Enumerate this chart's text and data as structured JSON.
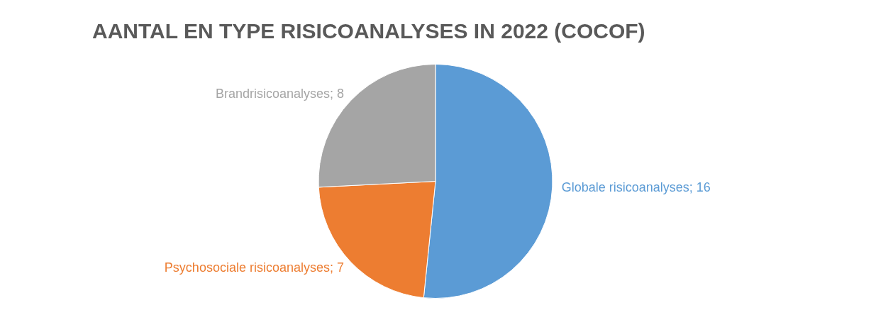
{
  "chart_data": {
    "type": "pie",
    "title": "AANTAL EN TYPE RISICOANALYSES IN 2022 (COCOF)",
    "categories": [
      "Globale risicoanalyses; 16",
      "Psychosociale risicoanalyses; 7",
      "Brandrisicoanalyses; 8"
    ],
    "values": [
      16,
      7,
      8
    ],
    "colors": [
      "#5b9bd5",
      "#ed7d31",
      "#a5a5a5"
    ],
    "legend": false
  }
}
